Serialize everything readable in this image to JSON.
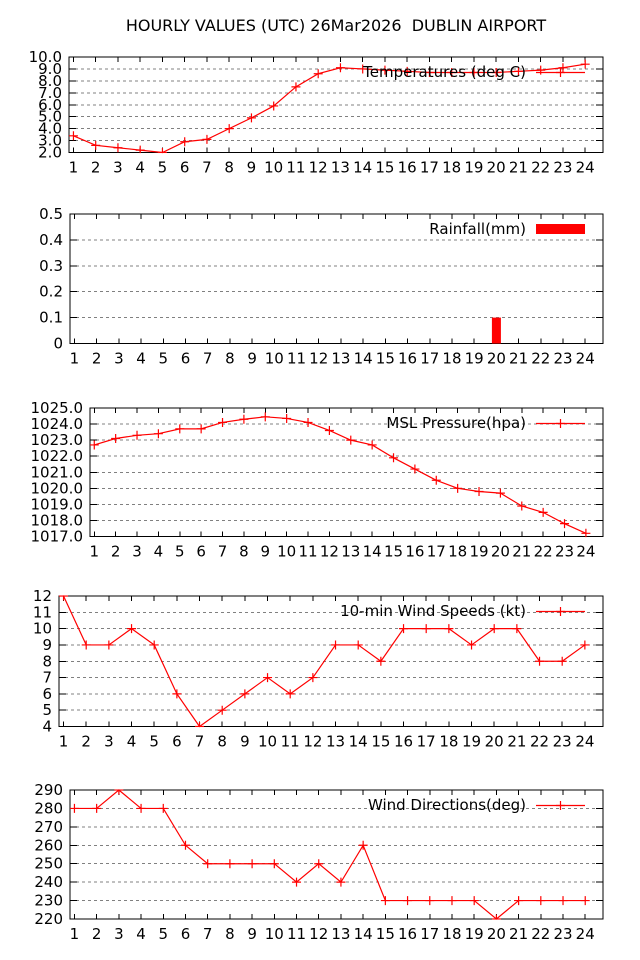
{
  "page_title": "HOURLY VALUES (UTC) 26Mar2026  DUBLIN AIRPORT",
  "colors": {
    "series": "#ff0000",
    "grid": "#808080",
    "axis": "#000000",
    "background": "#ffffff",
    "text": "#000000"
  },
  "chart_data": [
    {
      "id": "temperatures",
      "type": "line",
      "legend": "Temperatures (deg C)",
      "legend_position": "top-right",
      "marker": "plus",
      "grid": true,
      "xlabel": "",
      "ylabel": "",
      "xlim": [
        0.8,
        24.8
      ],
      "ylim": [
        2.0,
        10.0
      ],
      "x": [
        1,
        2,
        3,
        4,
        5,
        6,
        7,
        8,
        9,
        10,
        11,
        12,
        13,
        14,
        15,
        16,
        17,
        18,
        19,
        20,
        21,
        22,
        23,
        24
      ],
      "values": [
        3.4,
        2.6,
        2.4,
        2.2,
        2.0,
        2.9,
        3.1,
        4.0,
        4.9,
        5.9,
        7.5,
        8.6,
        9.1,
        9.0,
        8.9,
        8.8,
        8.7,
        8.7,
        8.7,
        8.7,
        8.8,
        8.9,
        9.1,
        9.4
      ],
      "ytick_values": [
        2,
        3,
        4,
        5,
        6,
        7,
        8,
        9,
        10
      ],
      "ytick_labels": [
        "2.0",
        "3.0",
        "4.0",
        "5.0",
        "6.0",
        "7.0",
        "8.0",
        "9.0",
        "10.0"
      ]
    },
    {
      "id": "rainfall",
      "type": "bar",
      "legend": "Rainfall(mm)",
      "legend_position": "top-right",
      "grid": true,
      "xlabel": "",
      "ylabel": "",
      "xlim": [
        0.8,
        24.8
      ],
      "ylim": [
        0,
        0.5
      ],
      "x": [
        1,
        2,
        3,
        4,
        5,
        6,
        7,
        8,
        9,
        10,
        11,
        12,
        13,
        14,
        15,
        16,
        17,
        18,
        19,
        20,
        21,
        22,
        23,
        24
      ],
      "values": [
        0,
        0,
        0,
        0,
        0,
        0,
        0,
        0,
        0,
        0,
        0,
        0,
        0,
        0,
        0,
        0,
        0,
        0,
        0,
        0.1,
        0,
        0,
        0,
        0
      ],
      "ytick_values": [
        0,
        0.1,
        0.2,
        0.3,
        0.4,
        0.5
      ],
      "ytick_labels": [
        "0",
        "0.1",
        "0.2",
        "0.3",
        "0.4",
        "0.5"
      ]
    },
    {
      "id": "msl-pressure",
      "type": "line",
      "legend": "MSL Pressure(hpa)",
      "legend_position": "top-right",
      "marker": "plus",
      "grid": true,
      "xlabel": "",
      "ylabel": "",
      "xlim": [
        0.8,
        24.8
      ],
      "ylim": [
        1017.0,
        1025.0
      ],
      "x": [
        1,
        2,
        3,
        4,
        5,
        6,
        7,
        8,
        9,
        10,
        11,
        12,
        13,
        14,
        15,
        16,
        17,
        18,
        19,
        20,
        21,
        22,
        23,
        24
      ],
      "values": [
        1022.7,
        1023.1,
        1023.3,
        1023.4,
        1023.7,
        1023.7,
        1024.1,
        1024.3,
        1024.45,
        1024.35,
        1024.1,
        1023.6,
        1023.0,
        1022.7,
        1021.9,
        1021.2,
        1020.5,
        1020.0,
        1019.8,
        1019.7,
        1018.9,
        1018.5,
        1017.8,
        1017.2
      ],
      "ytick_values": [
        1017,
        1018,
        1019,
        1020,
        1021,
        1022,
        1023,
        1024,
        1025
      ],
      "ytick_labels": [
        "1017.0",
        "1018.0",
        "1019.0",
        "1020.0",
        "1021.0",
        "1022.0",
        "1023.0",
        "1024.0",
        "1025.0"
      ]
    },
    {
      "id": "wind-speeds",
      "type": "line",
      "legend": "10-min Wind Speeds (kt)",
      "legend_position": "top-right",
      "marker": "plus",
      "grid": true,
      "xlabel": "",
      "ylabel": "",
      "xlim": [
        0.8,
        24.8
      ],
      "ylim": [
        4,
        12
      ],
      "x": [
        1,
        2,
        3,
        4,
        5,
        6,
        7,
        8,
        9,
        10,
        11,
        12,
        13,
        14,
        15,
        16,
        17,
        18,
        19,
        20,
        21,
        22,
        23,
        24
      ],
      "values": [
        12,
        9,
        9,
        10,
        9,
        6,
        4,
        5,
        6,
        7,
        6,
        7,
        9,
        9,
        8,
        10,
        10,
        10,
        9,
        10,
        10,
        8,
        8,
        9
      ],
      "ytick_values": [
        4,
        5,
        6,
        7,
        8,
        9,
        10,
        11,
        12
      ],
      "ytick_labels": [
        "4",
        "5",
        "6",
        "7",
        "8",
        "9",
        "10",
        "11",
        "12"
      ]
    },
    {
      "id": "wind-directions",
      "type": "line",
      "legend": "Wind Directions(deg)",
      "legend_position": "top-right",
      "marker": "plus",
      "grid": true,
      "xlabel": "",
      "ylabel": "",
      "xlim": [
        0.8,
        24.8
      ],
      "ylim": [
        220,
        290
      ],
      "x": [
        1,
        2,
        3,
        4,
        5,
        6,
        7,
        8,
        9,
        10,
        11,
        12,
        13,
        14,
        15,
        16,
        17,
        18,
        19,
        20,
        21,
        22,
        23,
        24
      ],
      "values": [
        280,
        280,
        290,
        280,
        280,
        260,
        250,
        250,
        250,
        250,
        240,
        250,
        240,
        260,
        230,
        230,
        230,
        230,
        230,
        220,
        230,
        230,
        230,
        230
      ],
      "ytick_values": [
        220,
        230,
        240,
        250,
        260,
        270,
        280,
        290
      ],
      "ytick_labels": [
        "220",
        "230",
        "240",
        "250",
        "260",
        "270",
        "280",
        "290"
      ]
    }
  ]
}
